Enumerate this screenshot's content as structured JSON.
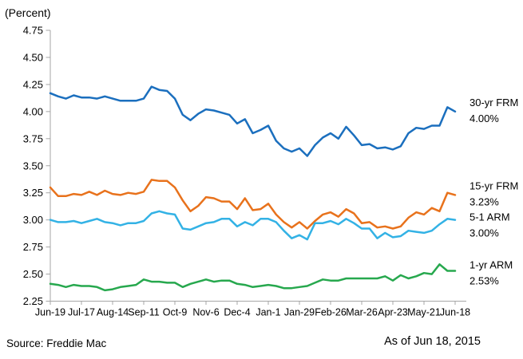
{
  "figure": {
    "units_label": "(Percent)",
    "source": "Source: Freddie Mac",
    "as_of": "As of Jun 18, 2015"
  },
  "colors": {
    "axis": "#A6A6A6",
    "text": "#000000",
    "background": "#FFFFFF"
  },
  "chart_data": {
    "type": "line",
    "title": "",
    "units_label": "(Percent)",
    "xlabel": "",
    "ylabel": "(Percent)",
    "ylim": [
      2.25,
      4.75
    ],
    "ytick_step": 0.25,
    "grid": false,
    "legend_position": "right-of-line-ends",
    "y_tick_labels": [
      "4.75",
      "4.50",
      "4.25",
      "4.00",
      "3.75",
      "3.50",
      "3.25",
      "3.00",
      "2.75",
      "2.50",
      "2.25"
    ],
    "x_tick_labels": [
      "Jun-19",
      "Jul-17",
      "Aug-14",
      "Sep-11",
      "Oct-9",
      "Nov-6",
      "Dec-4",
      "Jan-1",
      "Jan-29",
      "Feb-26",
      "Mar-26",
      "Apr-23",
      "May-21",
      "Jun-18"
    ],
    "x_tick_every_n_points": 4,
    "x": [
      "Jun-19",
      "Jun-26",
      "Jul-3",
      "Jul-10",
      "Jul-17",
      "Jul-24",
      "Jul-31",
      "Aug-7",
      "Aug-14",
      "Aug-21",
      "Aug-28",
      "Sep-4",
      "Sep-11",
      "Sep-18",
      "Sep-25",
      "Oct-2",
      "Oct-9",
      "Oct-16",
      "Oct-23",
      "Oct-30",
      "Nov-6",
      "Nov-13",
      "Nov-20",
      "Nov-27",
      "Dec-4",
      "Dec-11",
      "Dec-18",
      "Dec-25",
      "Jan-1",
      "Jan-8",
      "Jan-15",
      "Jan-22",
      "Jan-29",
      "Feb-5",
      "Feb-12",
      "Feb-19",
      "Feb-26",
      "Mar-5",
      "Mar-12",
      "Mar-19",
      "Mar-26",
      "Apr-2",
      "Apr-9",
      "Apr-16",
      "Apr-23",
      "Apr-30",
      "May-7",
      "May-14",
      "May-21",
      "May-28",
      "Jun-4",
      "Jun-11",
      "Jun-18"
    ],
    "series": [
      {
        "name": "30-yr FRM",
        "end_label": "30-yr FRM",
        "end_value": "4.00%",
        "color": "#1B6FBE",
        "values": [
          4.17,
          4.14,
          4.12,
          4.15,
          4.13,
          4.13,
          4.12,
          4.14,
          4.12,
          4.1,
          4.1,
          4.1,
          4.12,
          4.23,
          4.2,
          4.19,
          4.12,
          3.97,
          3.92,
          3.98,
          4.02,
          4.01,
          3.99,
          3.97,
          3.89,
          3.93,
          3.8,
          3.83,
          3.87,
          3.73,
          3.66,
          3.63,
          3.66,
          3.59,
          3.69,
          3.76,
          3.8,
          3.75,
          3.86,
          3.78,
          3.69,
          3.7,
          3.66,
          3.67,
          3.65,
          3.68,
          3.8,
          3.85,
          3.84,
          3.87,
          3.87,
          4.04,
          4.0
        ]
      },
      {
        "name": "15-yr FRM",
        "end_label": "15-yr FRM",
        "end_value": "3.23%",
        "color": "#E8721C",
        "values": [
          3.3,
          3.22,
          3.22,
          3.24,
          3.23,
          3.26,
          3.23,
          3.27,
          3.24,
          3.23,
          3.25,
          3.24,
          3.26,
          3.37,
          3.36,
          3.36,
          3.3,
          3.18,
          3.08,
          3.13,
          3.21,
          3.2,
          3.17,
          3.17,
          3.1,
          3.2,
          3.09,
          3.1,
          3.15,
          3.05,
          2.98,
          2.93,
          2.98,
          2.92,
          2.99,
          3.05,
          3.07,
          3.03,
          3.1,
          3.06,
          2.97,
          2.98,
          2.93,
          2.94,
          2.92,
          2.94,
          3.02,
          3.07,
          3.05,
          3.11,
          3.08,
          3.25,
          3.23
        ]
      },
      {
        "name": "5-1 ARM",
        "end_label": "5-1 ARM",
        "end_value": "3.00%",
        "color": "#33B2E5",
        "values": [
          3.0,
          2.98,
          2.98,
          2.99,
          2.97,
          2.99,
          3.01,
          2.98,
          2.97,
          2.95,
          2.97,
          2.97,
          2.99,
          3.06,
          3.08,
          3.06,
          3.05,
          2.92,
          2.91,
          2.94,
          2.97,
          2.98,
          3.01,
          3.01,
          2.94,
          2.98,
          2.95,
          3.01,
          3.01,
          2.98,
          2.9,
          2.83,
          2.86,
          2.82,
          2.97,
          2.97,
          2.99,
          2.96,
          3.01,
          2.97,
          2.92,
          2.92,
          2.83,
          2.88,
          2.84,
          2.85,
          2.9,
          2.89,
          2.88,
          2.9,
          2.96,
          3.01,
          3.0
        ]
      },
      {
        "name": "1-yr ARM",
        "end_label": "1-yr ARM",
        "end_value": "2.53%",
        "color": "#27A84E",
        "values": [
          2.41,
          2.4,
          2.38,
          2.4,
          2.39,
          2.39,
          2.38,
          2.35,
          2.36,
          2.38,
          2.39,
          2.4,
          2.45,
          2.43,
          2.43,
          2.42,
          2.42,
          2.38,
          2.41,
          2.43,
          2.45,
          2.43,
          2.44,
          2.44,
          2.41,
          2.4,
          2.38,
          2.39,
          2.4,
          2.39,
          2.37,
          2.37,
          2.38,
          2.39,
          2.42,
          2.45,
          2.44,
          2.44,
          2.46,
          2.46,
          2.46,
          2.46,
          2.46,
          2.48,
          2.44,
          2.49,
          2.46,
          2.48,
          2.51,
          2.5,
          2.59,
          2.53,
          2.53
        ]
      }
    ]
  }
}
